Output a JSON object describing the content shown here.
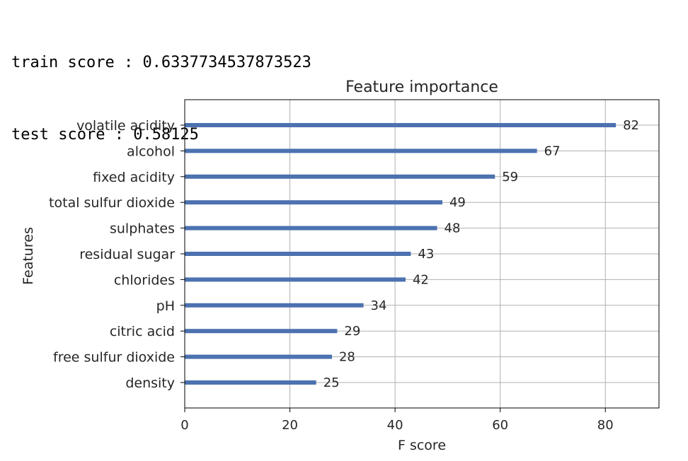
{
  "output": {
    "train_label": "train score : ",
    "train_value": "0.6337734537873523",
    "test_label": "test score : ",
    "test_value": "0.58125"
  },
  "chart_data": {
    "type": "bar",
    "orientation": "horizontal",
    "title": "Feature importance",
    "xlabel": "F score",
    "ylabel": "Features",
    "categories": [
      "volatile acidity",
      "alcohol",
      "fixed acidity",
      "total sulfur dioxide",
      "sulphates",
      "residual sugar",
      "chlorides",
      "pH",
      "citric acid",
      "free sulfur dioxide",
      "density"
    ],
    "values": [
      82,
      67,
      59,
      49,
      48,
      43,
      42,
      34,
      29,
      28,
      25
    ],
    "xlim": [
      0,
      90.2
    ],
    "xticks": [
      0,
      20,
      40,
      60,
      80
    ],
    "grid": true,
    "bar_color": "#4c72b0",
    "data_labels": true
  }
}
